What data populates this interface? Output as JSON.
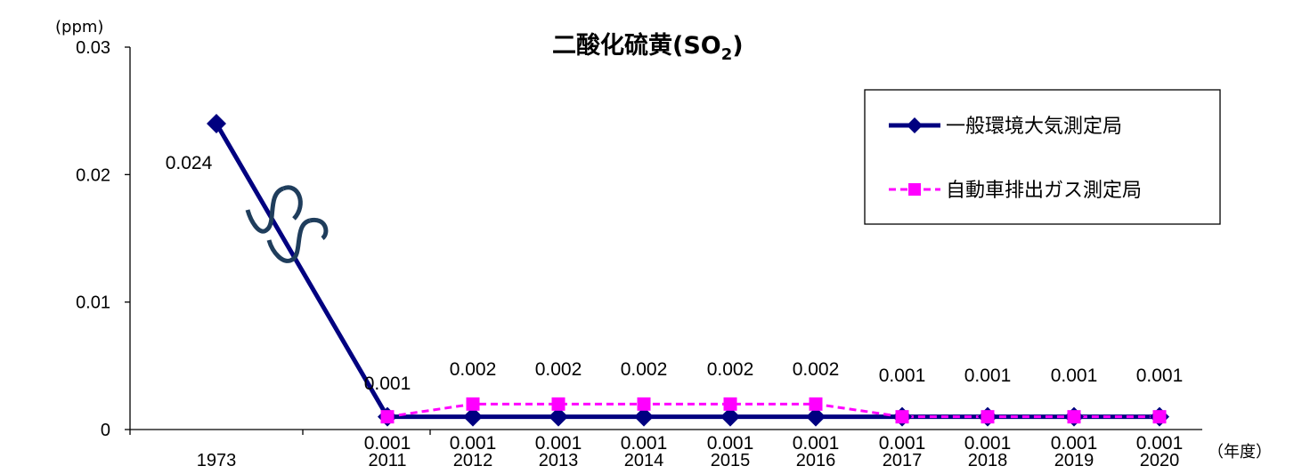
{
  "chart_data": {
    "type": "line",
    "title": "二酸化硫黄(SO",
    "title_sub": "2",
    "title_close": ")",
    "y_unit": "(ppm)",
    "x_unit": "（年度）",
    "ylim": [
      0,
      0.03
    ],
    "yticks": [
      "0",
      "0.01",
      "0.02",
      "0.03"
    ],
    "categories": [
      "1973",
      "2011",
      "2012",
      "2013",
      "2014",
      "2015",
      "2016",
      "2017",
      "2018",
      "2019",
      "2020"
    ],
    "series": [
      {
        "name": "一般環境大気測定局",
        "color": "#000080",
        "marker": "diamond",
        "line": "solid",
        "values": [
          0.024,
          0.001,
          0.001,
          0.001,
          0.001,
          0.001,
          0.001,
          0.001,
          0.001,
          0.001,
          0.001
        ],
        "labels": [
          "0.024",
          "0.001",
          "0.001",
          "0.001",
          "0.001",
          "0.001",
          "0.001",
          "0.001",
          "0.001",
          "0.001",
          "0.001"
        ]
      },
      {
        "name": "自動車排出ガス測定局",
        "color": "#ff00ff",
        "marker": "square",
        "line": "dashed",
        "values": [
          null,
          0.001,
          0.002,
          0.002,
          0.002,
          0.002,
          0.002,
          0.001,
          0.001,
          0.001,
          0.001
        ],
        "labels": [
          null,
          null,
          "0.002",
          "0.002",
          "0.002",
          "0.002",
          "0.002",
          "0.001",
          "0.001",
          "0.001",
          "0.001"
        ]
      }
    ],
    "axis_break": true,
    "legend_position": "top-right",
    "grid": false
  }
}
